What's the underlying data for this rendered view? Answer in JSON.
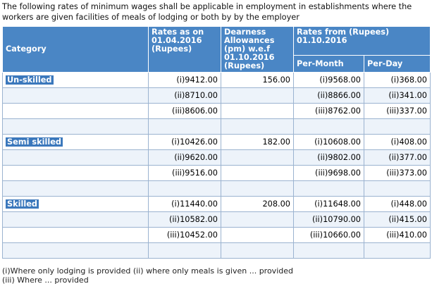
{
  "intro_text": "The following rates of minimum wages shall be applicable in employment in establishments where the workers are given facilities of meals of lodging or both by by the employer",
  "table": {
    "headers": {
      "category": "Category",
      "rates_as_on": "Rates as on 01.04.2016 (Rupees)",
      "dearness": "Dearness Allowances (pm) w.e.f 01.10.2016 (Rupees)",
      "rates_from": "Rates from (Rupees) 01.10.2016",
      "per_month": "Per-Month",
      "per_day": "Per-Day"
    },
    "groups": [
      {
        "category": "Un-skilled",
        "da": "156.00",
        "rows": [
          {
            "rate": "(i)9412.00",
            "month": "(i)9568.00",
            "day": "(i)368.00"
          },
          {
            "rate": "(ii)8710.00",
            "month": "(ii)8866.00",
            "day": "(ii)341.00"
          },
          {
            "rate": "(iii)8606.00",
            "month": "(iii)8762.00",
            "day": "(iii)337.00"
          }
        ]
      },
      {
        "category": "Semi skilled",
        "da": "182.00",
        "rows": [
          {
            "rate": "(i)10426.00",
            "month": "(i)10608.00",
            "day": "(i)408.00"
          },
          {
            "rate": "(ii)9620.00",
            "month": "(ii)9802.00",
            "day": "(ii)377.00"
          },
          {
            "rate": "(iii)9516.00",
            "month": "(iii)9698.00",
            "day": "(iii)373.00"
          }
        ]
      },
      {
        "category": "Skilled",
        "da": "208.00",
        "rows": [
          {
            "rate": "(i)11440.00",
            "month": "(i)11648.00",
            "day": "(i)448.00"
          },
          {
            "rate": "(ii)10582.00",
            "month": "(ii)10790.00",
            "day": "(ii)415.00"
          },
          {
            "rate": "(iii)10452.00",
            "month": "(iii)10660.00",
            "day": "(iii)410.00"
          }
        ]
      }
    ]
  },
  "footnotes": [
    "(i)Where only lodging is provided (ii) where only meals is given ... provided",
    "(iii) Where ... provided"
  ]
}
